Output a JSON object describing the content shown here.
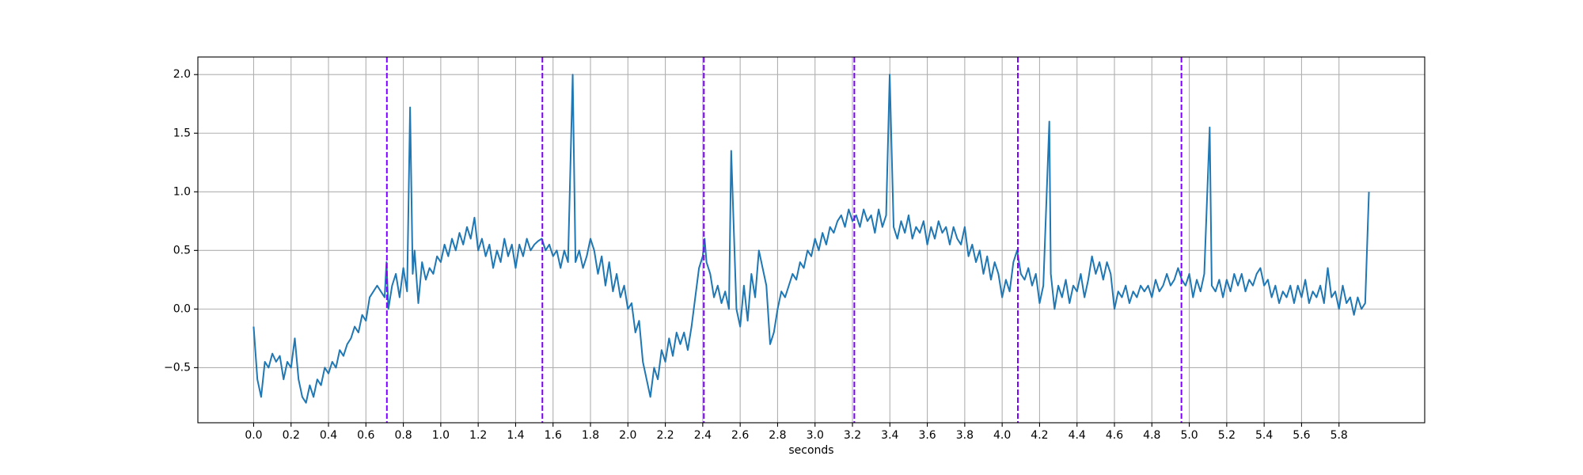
{
  "chart_data": {
    "type": "line",
    "xlabel": "seconds",
    "x": [
      0,
      0.02,
      0.04,
      0.06,
      0.08,
      0.1,
      0.12,
      0.14,
      0.16,
      0.18,
      0.2,
      0.22,
      0.24,
      0.26,
      0.28,
      0.3,
      0.32,
      0.34,
      0.36,
      0.38,
      0.4,
      0.42,
      0.44,
      0.46,
      0.48,
      0.5,
      0.52,
      0.54,
      0.56,
      0.58,
      0.6,
      0.62,
      0.64,
      0.66,
      0.68,
      0.7,
      0.71,
      0.72,
      0.74,
      0.76,
      0.78,
      0.8,
      0.82,
      0.836,
      0.85,
      0.86,
      0.88,
      0.9,
      0.92,
      0.94,
      0.96,
      0.98,
      1.0,
      1.02,
      1.04,
      1.06,
      1.08,
      1.1,
      1.12,
      1.14,
      1.16,
      1.18,
      1.2,
      1.22,
      1.24,
      1.26,
      1.28,
      1.3,
      1.32,
      1.34,
      1.36,
      1.38,
      1.4,
      1.42,
      1.44,
      1.46,
      1.48,
      1.5,
      1.52,
      1.54,
      1.56,
      1.58,
      1.6,
      1.62,
      1.64,
      1.66,
      1.68,
      1.705,
      1.72,
      1.74,
      1.76,
      1.78,
      1.8,
      1.82,
      1.84,
      1.86,
      1.88,
      1.9,
      1.92,
      1.94,
      1.96,
      1.98,
      2.0,
      2.02,
      2.04,
      2.06,
      2.08,
      2.1,
      2.12,
      2.14,
      2.16,
      2.18,
      2.2,
      2.22,
      2.24,
      2.26,
      2.28,
      2.3,
      2.32,
      2.34,
      2.36,
      2.38,
      2.4,
      2.41,
      2.42,
      2.44,
      2.46,
      2.48,
      2.5,
      2.52,
      2.54,
      2.552,
      2.58,
      2.6,
      2.62,
      2.64,
      2.66,
      2.68,
      2.7,
      2.72,
      2.74,
      2.76,
      2.78,
      2.8,
      2.82,
      2.84,
      2.86,
      2.88,
      2.9,
      2.92,
      2.94,
      2.96,
      2.98,
      3.0,
      3.02,
      3.04,
      3.06,
      3.08,
      3.1,
      3.12,
      3.14,
      3.16,
      3.18,
      3.2,
      3.22,
      3.24,
      3.26,
      3.28,
      3.3,
      3.32,
      3.34,
      3.36,
      3.38,
      3.399,
      3.42,
      3.44,
      3.46,
      3.48,
      3.5,
      3.52,
      3.54,
      3.56,
      3.58,
      3.6,
      3.62,
      3.64,
      3.66,
      3.68,
      3.7,
      3.72,
      3.74,
      3.76,
      3.78,
      3.8,
      3.82,
      3.84,
      3.86,
      3.88,
      3.9,
      3.92,
      3.94,
      3.96,
      3.98,
      4.0,
      4.02,
      4.04,
      4.06,
      4.08,
      4.1,
      4.12,
      4.14,
      4.16,
      4.18,
      4.2,
      4.22,
      4.252,
      4.26,
      4.28,
      4.3,
      4.32,
      4.34,
      4.36,
      4.38,
      4.4,
      4.42,
      4.44,
      4.46,
      4.48,
      4.5,
      4.52,
      4.54,
      4.56,
      4.58,
      4.6,
      4.62,
      4.64,
      4.66,
      4.68,
      4.7,
      4.72,
      4.74,
      4.76,
      4.78,
      4.8,
      4.82,
      4.84,
      4.86,
      4.88,
      4.9,
      4.92,
      4.94,
      4.96,
      4.98,
      5.0,
      5.02,
      5.04,
      5.06,
      5.08,
      5.109,
      5.12,
      5.14,
      5.16,
      5.18,
      5.2,
      5.22,
      5.24,
      5.26,
      5.28,
      5.3,
      5.32,
      5.34,
      5.36,
      5.38,
      5.4,
      5.42,
      5.44,
      5.46,
      5.48,
      5.5,
      5.52,
      5.54,
      5.56,
      5.58,
      5.6,
      5.62,
      5.64,
      5.66,
      5.68,
      5.7,
      5.72,
      5.74,
      5.76,
      5.78,
      5.8,
      5.82,
      5.84,
      5.86,
      5.88,
      5.9,
      5.92,
      5.94,
      5.96
    ],
    "series": [
      {
        "color": "#1f77b4",
        "values": [
          -0.15,
          -0.6,
          -0.75,
          -0.45,
          -0.5,
          -0.38,
          -0.45,
          -0.4,
          -0.6,
          -0.45,
          -0.5,
          -0.25,
          -0.6,
          -0.75,
          -0.8,
          -0.65,
          -0.75,
          -0.6,
          -0.65,
          -0.5,
          -0.55,
          -0.45,
          -0.5,
          -0.35,
          -0.4,
          -0.3,
          -0.25,
          -0.15,
          -0.2,
          -0.05,
          -0.1,
          0.1,
          0.15,
          0.2,
          0.15,
          0.1,
          0.4,
          0.0,
          0.2,
          0.3,
          0.1,
          0.35,
          0.15,
          1.72,
          0.3,
          0.5,
          0.05,
          0.4,
          0.25,
          0.35,
          0.3,
          0.45,
          0.4,
          0.55,
          0.45,
          0.6,
          0.5,
          0.65,
          0.55,
          0.7,
          0.6,
          0.78,
          0.5,
          0.6,
          0.45,
          0.55,
          0.35,
          0.5,
          0.4,
          0.6,
          0.45,
          0.55,
          0.35,
          0.55,
          0.45,
          0.6,
          0.5,
          0.55,
          0.58,
          0.6,
          0.5,
          0.55,
          0.45,
          0.5,
          0.35,
          0.5,
          0.4,
          2.0,
          0.4,
          0.5,
          0.35,
          0.45,
          0.6,
          0.5,
          0.3,
          0.45,
          0.2,
          0.4,
          0.15,
          0.3,
          0.1,
          0.2,
          0.0,
          0.05,
          -0.2,
          -0.1,
          -0.45,
          -0.6,
          -0.75,
          -0.5,
          -0.6,
          -0.35,
          -0.45,
          -0.25,
          -0.4,
          -0.2,
          -0.3,
          -0.2,
          -0.35,
          -0.15,
          0.1,
          0.35,
          0.45,
          0.6,
          0.4,
          0.3,
          0.1,
          0.2,
          0.05,
          0.15,
          0.0,
          1.35,
          0.0,
          -0.15,
          0.2,
          -0.1,
          0.3,
          0.1,
          0.5,
          0.35,
          0.2,
          -0.3,
          -0.2,
          0.0,
          0.15,
          0.1,
          0.2,
          0.3,
          0.25,
          0.4,
          0.35,
          0.5,
          0.45,
          0.6,
          0.5,
          0.65,
          0.55,
          0.7,
          0.65,
          0.75,
          0.8,
          0.7,
          0.85,
          0.75,
          0.8,
          0.7,
          0.85,
          0.75,
          0.8,
          0.65,
          0.85,
          0.7,
          0.8,
          2.0,
          0.7,
          0.6,
          0.75,
          0.65,
          0.8,
          0.6,
          0.7,
          0.65,
          0.75,
          0.55,
          0.7,
          0.6,
          0.75,
          0.65,
          0.7,
          0.55,
          0.7,
          0.6,
          0.55,
          0.7,
          0.45,
          0.55,
          0.4,
          0.5,
          0.3,
          0.45,
          0.25,
          0.4,
          0.3,
          0.1,
          0.25,
          0.15,
          0.4,
          0.5,
          0.3,
          0.25,
          0.35,
          0.2,
          0.3,
          0.05,
          0.2,
          1.6,
          0.3,
          0.0,
          0.2,
          0.1,
          0.25,
          0.05,
          0.2,
          0.15,
          0.3,
          0.1,
          0.25,
          0.45,
          0.3,
          0.4,
          0.25,
          0.4,
          0.3,
          0.0,
          0.15,
          0.1,
          0.2,
          0.05,
          0.15,
          0.1,
          0.2,
          0.15,
          0.2,
          0.1,
          0.25,
          0.15,
          0.2,
          0.3,
          0.2,
          0.25,
          0.35,
          0.25,
          0.2,
          0.3,
          0.1,
          0.25,
          0.15,
          0.3,
          1.55,
          0.2,
          0.15,
          0.25,
          0.1,
          0.25,
          0.15,
          0.3,
          0.2,
          0.3,
          0.15,
          0.25,
          0.2,
          0.3,
          0.35,
          0.2,
          0.25,
          0.1,
          0.2,
          0.05,
          0.15,
          0.1,
          0.2,
          0.05,
          0.2,
          0.1,
          0.25,
          0.05,
          0.15,
          0.1,
          0.2,
          0.05,
          0.35,
          0.1,
          0.15,
          0.0,
          0.2,
          0.05,
          0.1,
          -0.05,
          0.1,
          0.0,
          0.05,
          1.0
        ]
      }
    ],
    "vlines": [
      0.712,
      1.543,
      2.406,
      3.21,
      4.084,
      4.958
    ],
    "vline_color": "#7f00ff",
    "vline_style": "dashed",
    "xlim": [
      -0.298,
      6.258
    ],
    "ylim": [
      -0.97,
      2.15
    ],
    "xticks": [
      {
        "value": 0,
        "label": "0.0"
      },
      0.2,
      0.4,
      0.6,
      0.8,
      {
        "value": 1,
        "label": "1.0"
      },
      1.2,
      1.4,
      1.6,
      1.8,
      {
        "value": 2,
        "label": "2.0"
      },
      2.2,
      2.4,
      2.6,
      2.8,
      {
        "value": 3,
        "label": "3.0"
      },
      3.2,
      3.4,
      3.6,
      3.8,
      {
        "value": 4,
        "label": "4.0"
      },
      4.2,
      4.4,
      4.6,
      4.8,
      {
        "value": 5,
        "label": "5.0"
      },
      5.2,
      5.4,
      5.6,
      5.8
    ],
    "yticks": [
      {
        "value": -0.5,
        "label": "−0.5"
      },
      {
        "value": 0,
        "label": "0.0"
      },
      0.5,
      {
        "value": 1,
        "label": "1.0"
      },
      1.5,
      {
        "value": 2,
        "label": "2.0"
      }
    ],
    "grid": true
  }
}
